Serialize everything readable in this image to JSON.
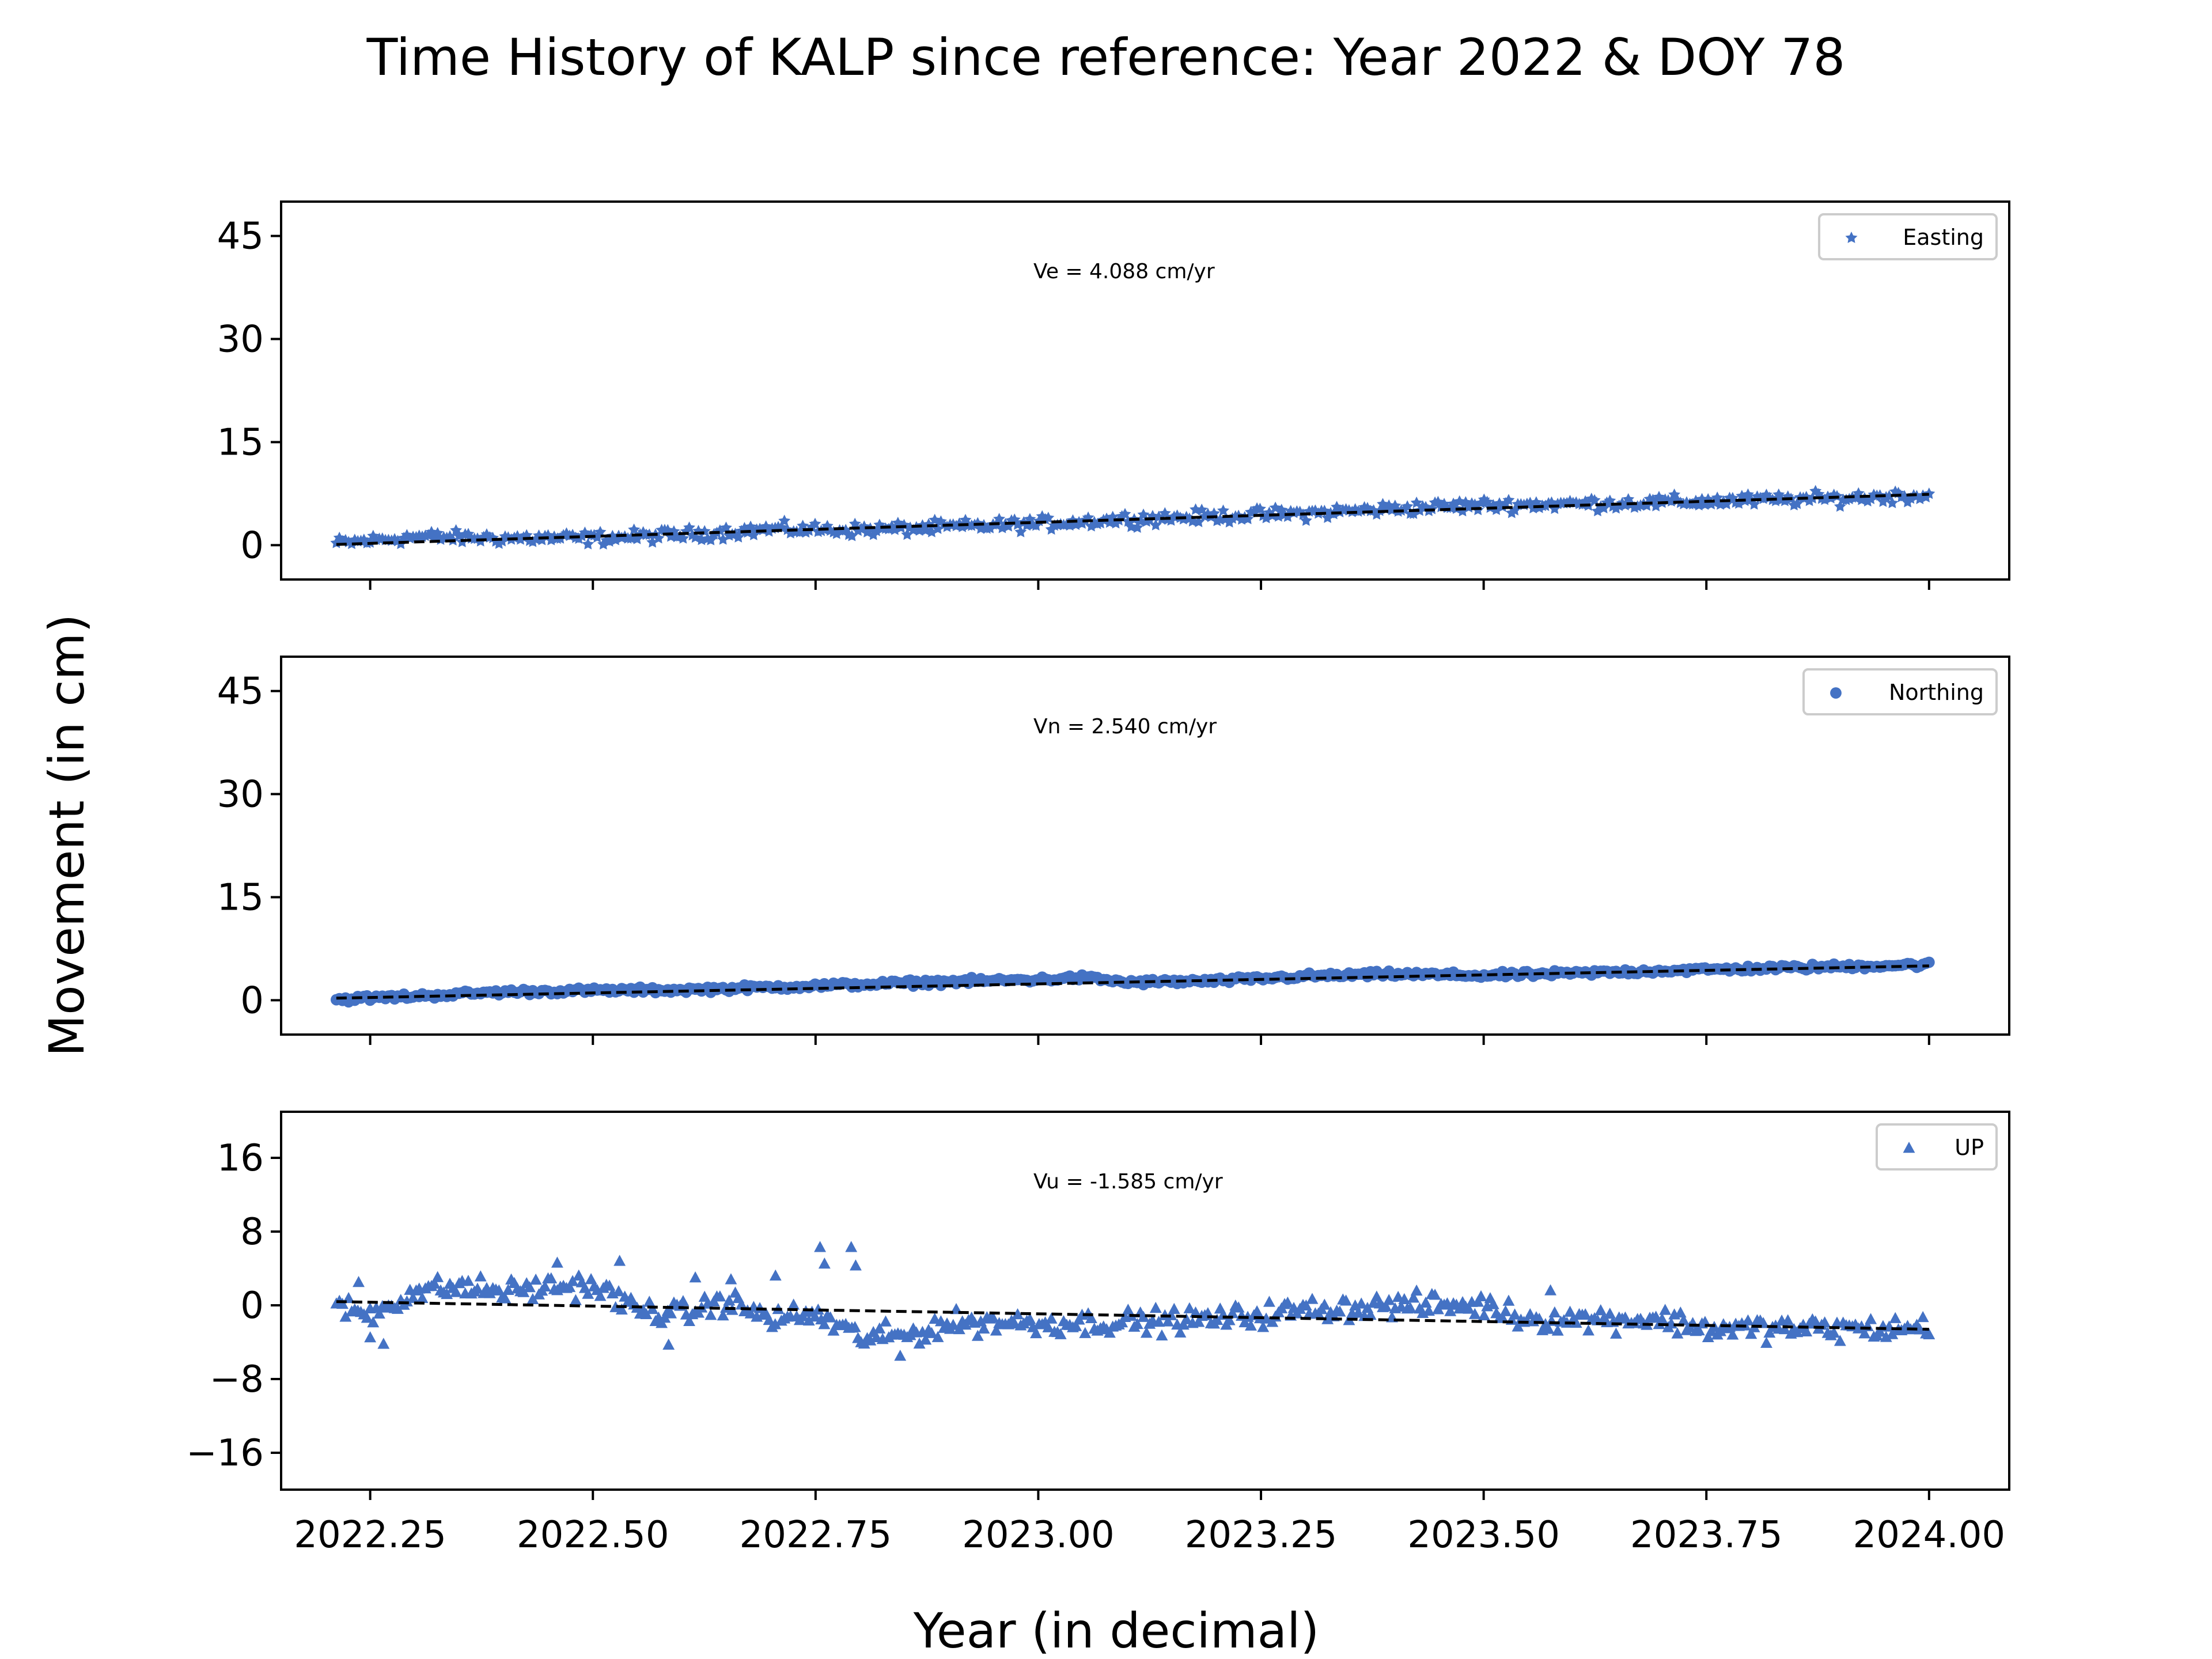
{
  "figure": {
    "title": "Time History of KALP since reference: Year 2022 & DOY 78",
    "xlabel": "Year (in decimal)",
    "ylabel": "Movement (in cm)"
  },
  "colors": {
    "marker": "#4472c4",
    "fit": "#000000",
    "legend_border": "#cccccc"
  },
  "chart_data": [
    {
      "type": "scatter",
      "panel": "Easting",
      "marker": "pentagon-star",
      "series": [
        {
          "name": "Easting",
          "x_start": 2022.212,
          "x_end": 2024.0,
          "trend_points": [
            [
              2022.21,
              0.2
            ],
            [
              2022.3,
              1.2
            ],
            [
              2022.4,
              1.0
            ],
            [
              2022.5,
              1.0
            ],
            [
              2022.6,
              1.5
            ],
            [
              2022.7,
              2.3
            ],
            [
              2022.8,
              2.2
            ],
            [
              2022.9,
              2.6
            ],
            [
              2023.0,
              3.1
            ],
            [
              2023.1,
              3.8
            ],
            [
              2023.2,
              4.2
            ],
            [
              2023.3,
              4.6
            ],
            [
              2023.4,
              5.3
            ],
            [
              2023.5,
              5.8
            ],
            [
              2023.6,
              6.0
            ],
            [
              2023.7,
              6.2
            ],
            [
              2023.8,
              6.5
            ],
            [
              2023.9,
              6.8
            ],
            [
              2024.0,
              7.3
            ]
          ],
          "noise_cm": 0.8
        }
      ],
      "fit_line": {
        "x": [
          2022.212,
          2024.0
        ],
        "y": [
          0.1,
          7.4
        ]
      },
      "annotation": "Ve =  4.088 cm/yr",
      "xlim": [
        2022.15,
        2024.09
      ],
      "ylim": [
        -5,
        50
      ],
      "yticks": [
        0,
        15,
        30,
        45
      ],
      "yticklabels": [
        "0",
        "15",
        "30",
        "45"
      ],
      "legend": "top-right"
    },
    {
      "type": "scatter",
      "panel": "Northing",
      "marker": "circle",
      "series": [
        {
          "name": "Northing",
          "x_start": 2022.212,
          "x_end": 2024.0,
          "trend_points": [
            [
              2022.21,
              0.1
            ],
            [
              2022.3,
              0.6
            ],
            [
              2022.4,
              1.2
            ],
            [
              2022.5,
              1.4
            ],
            [
              2022.6,
              1.5
            ],
            [
              2022.7,
              1.9
            ],
            [
              2022.8,
              2.3
            ],
            [
              2022.9,
              2.7
            ],
            [
              2023.0,
              3.0
            ],
            [
              2023.05,
              3.3
            ],
            [
              2023.1,
              2.6
            ],
            [
              2023.2,
              2.8
            ],
            [
              2023.3,
              3.5
            ],
            [
              2023.4,
              3.8
            ],
            [
              2023.5,
              3.6
            ],
            [
              2023.6,
              3.9
            ],
            [
              2023.7,
              4.3
            ],
            [
              2023.8,
              4.6
            ],
            [
              2023.9,
              4.9
            ],
            [
              2024.0,
              5.2
            ]
          ],
          "noise_cm": 0.35
        }
      ],
      "fit_line": {
        "x": [
          2022.212,
          2024.0
        ],
        "y": [
          0.3,
          5.0
        ]
      },
      "annotation": "Vn =  2.540 cm/yr",
      "xlim": [
        2022.15,
        2024.09
      ],
      "ylim": [
        -5,
        50
      ],
      "yticks": [
        0,
        15,
        30,
        45
      ],
      "yticklabels": [
        "0",
        "15",
        "30",
        "45"
      ],
      "legend": "top-right"
    },
    {
      "type": "scatter",
      "panel": "UP",
      "marker": "triangle",
      "series": [
        {
          "name": "UP",
          "x_start": 2022.212,
          "x_end": 2024.0,
          "trend_points": [
            [
              2022.21,
              0.0
            ],
            [
              2022.25,
              -1.0
            ],
            [
              2022.3,
              1.5
            ],
            [
              2022.35,
              2.0
            ],
            [
              2022.4,
              1.5
            ],
            [
              2022.45,
              2.0
            ],
            [
              2022.5,
              2.2
            ],
            [
              2022.55,
              -0.5
            ],
            [
              2022.6,
              -1.0
            ],
            [
              2022.65,
              0.5
            ],
            [
              2022.7,
              -1.5
            ],
            [
              2022.75,
              -1.0
            ],
            [
              2022.8,
              -3.5
            ],
            [
              2022.85,
              -3.3
            ],
            [
              2022.9,
              -2.0
            ],
            [
              2022.95,
              -1.8
            ],
            [
              2023.0,
              -2.0
            ],
            [
              2023.1,
              -1.8
            ],
            [
              2023.2,
              -1.5
            ],
            [
              2023.3,
              -0.5
            ],
            [
              2023.4,
              0.0
            ],
            [
              2023.5,
              0.0
            ],
            [
              2023.55,
              -1.5
            ],
            [
              2023.6,
              -1.5
            ],
            [
              2023.7,
              -1.5
            ],
            [
              2023.75,
              -2.5
            ],
            [
              2023.85,
              -2.5
            ],
            [
              2023.95,
              -2.6
            ],
            [
              2024.0,
              -2.4
            ]
          ],
          "noise_cm": 1.1,
          "outliers": [
            [
              2022.237,
              2.5
            ],
            [
              2022.25,
              -3.5
            ],
            [
              2022.265,
              -4.2
            ],
            [
              2022.46,
              4.6
            ],
            [
              2022.53,
              4.8
            ],
            [
              2022.585,
              -4.3
            ],
            [
              2022.615,
              3.0
            ],
            [
              2022.655,
              2.8
            ],
            [
              2022.705,
              3.2
            ],
            [
              2022.755,
              6.3
            ],
            [
              2022.79,
              6.3
            ],
            [
              2022.76,
              4.5
            ],
            [
              2022.795,
              4.3
            ],
            [
              2022.845,
              -5.5
            ],
            [
              2023.575,
              1.6
            ]
          ]
        }
      ],
      "fit_line": {
        "x": [
          2022.212,
          2024.0
        ],
        "y": [
          0.4,
          -2.6
        ]
      },
      "annotation": "Vu = -1.585 cm/yr",
      "xlim": [
        2022.15,
        2024.09
      ],
      "ylim": [
        -20,
        21
      ],
      "yticks": [
        -16,
        -8,
        0,
        8,
        16
      ],
      "yticklabels": [
        "−16",
        "−8",
        "0",
        "8",
        "16"
      ],
      "legend": "top-right"
    }
  ],
  "xticks": [
    2022.25,
    2022.5,
    2022.75,
    2023.0,
    2023.25,
    2023.5,
    2023.75,
    2024.0
  ],
  "xticklabels": [
    "2022.25",
    "2022.50",
    "2022.75",
    "2023.00",
    "2023.25",
    "2023.50",
    "2023.75",
    "2024.00"
  ]
}
